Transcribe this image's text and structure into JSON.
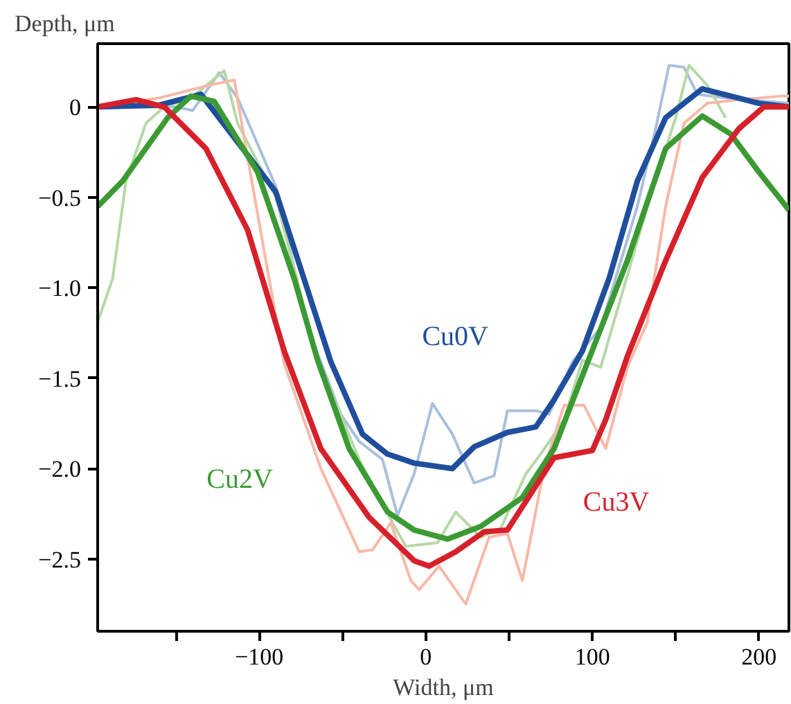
{
  "chart_data": {
    "type": "line",
    "xlabel": "Width, μm",
    "ylabel": "Depth, μm",
    "xlim": [
      -197,
      218
    ],
    "ylim": [
      -2.9,
      0.35
    ],
    "xticks": [
      {
        "value": -150,
        "label": null
      },
      {
        "value": -100,
        "label": "−100"
      },
      {
        "value": -50,
        "label": null
      },
      0,
      {
        "value": 50,
        "label": null
      },
      100,
      {
        "value": 150,
        "label": null
      },
      200
    ],
    "yticks": [
      0,
      {
        "value": -0.5,
        "label": "−0.5"
      },
      {
        "value": -1.0,
        "label": "−1.0"
      },
      {
        "value": -1.5,
        "label": "−1.5"
      },
      {
        "value": -2.0,
        "label": "−2.0"
      },
      {
        "value": -2.5,
        "label": "−2.5"
      }
    ],
    "grid": false,
    "marker": "none",
    "line_style": "solid",
    "series": [
      {
        "name": "Cu0V",
        "color": "#1f4e9c",
        "x": [
          -197,
          -160,
          -135,
          -90,
          -57,
          -38,
          -23,
          -7,
          16,
          29,
          49,
          66,
          77,
          94,
          110,
          127,
          144,
          166,
          183,
          200,
          218
        ],
        "values": [
          0,
          0.01,
          0.07,
          -0.47,
          -1.41,
          -1.81,
          -1.92,
          -1.97,
          -2.0,
          -1.88,
          -1.8,
          -1.77,
          -1.62,
          -1.35,
          -0.95,
          -0.41,
          -0.06,
          0.1,
          0.06,
          0.02,
          0
        ]
      },
      {
        "name": "Cu2V",
        "color": "#3c9a33",
        "x": [
          -197,
          -182,
          -155,
          -141,
          -127,
          -101,
          -79,
          -65,
          -46,
          -23,
          -7,
          13,
          33,
          58,
          77,
          96,
          121,
          144,
          166,
          183,
          200,
          218
        ],
        "values": [
          -0.55,
          -0.41,
          -0.06,
          0.06,
          0.03,
          -0.36,
          -0.95,
          -1.4,
          -1.89,
          -2.24,
          -2.34,
          -2.39,
          -2.32,
          -2.16,
          -1.89,
          -1.44,
          -0.85,
          -0.23,
          -0.05,
          -0.15,
          -0.36,
          -0.57
        ]
      },
      {
        "name": "Cu3V",
        "color": "#d6202a",
        "x": [
          -197,
          -174,
          -157,
          -132,
          -107,
          -85,
          -63,
          -34,
          -7,
          2,
          18,
          35,
          49,
          63,
          77,
          100,
          108,
          121,
          144,
          166,
          188,
          203,
          218
        ],
        "values": [
          0,
          0.04,
          0,
          -0.23,
          -0.68,
          -1.35,
          -1.89,
          -2.27,
          -2.51,
          -2.54,
          -2.46,
          -2.35,
          -2.34,
          -2.14,
          -1.94,
          -1.9,
          -1.73,
          -1.38,
          -0.85,
          -0.39,
          -0.12,
          0,
          0
        ]
      },
      {
        "color": "#a9bfdd",
        "x": [
          -197,
          -150,
          -140,
          -124,
          -113,
          -90,
          -71,
          -51,
          -40,
          -26,
          -17,
          -7,
          4,
          16,
          29,
          41,
          49,
          66,
          74,
          88,
          105,
          127,
          138,
          146,
          155,
          163,
          180,
          218
        ],
        "values": [
          0,
          0,
          -0.02,
          0.19,
          0.05,
          -0.44,
          -1.22,
          -1.7,
          -1.85,
          -1.95,
          -2.26,
          -2.03,
          -1.64,
          -1.81,
          -2.08,
          -2.04,
          -1.68,
          -1.68,
          -1.7,
          -1.41,
          -1.22,
          -0.55,
          -0.12,
          0.23,
          0.22,
          0.07,
          0.05,
          0.02
        ]
      },
      {
        "color": "#b5d9a5",
        "x": [
          -197,
          -188,
          -180,
          -168,
          -157,
          -141,
          -121,
          -113,
          -90,
          -65,
          -40,
          -20,
          -12,
          7,
          18,
          33,
          45,
          60,
          69,
          83,
          94,
          105,
          133,
          150,
          158,
          169,
          180
        ],
        "values": [
          -1.19,
          -0.95,
          -0.41,
          -0.09,
          0,
          0.05,
          0.2,
          -0.09,
          -0.5,
          -1.4,
          -1.95,
          -2.3,
          -2.43,
          -2.41,
          -2.24,
          -2.38,
          -2.33,
          -2.03,
          -1.92,
          -1.73,
          -1.4,
          -1.44,
          -0.55,
          -0.06,
          0.23,
          0.12,
          -0.06
        ]
      },
      {
        "color": "#f9b8a8",
        "x": [
          -197,
          -160,
          -130,
          -115,
          -107,
          -85,
          -63,
          -40,
          -32,
          -21,
          -9,
          -4,
          8,
          24,
          38,
          49,
          58,
          71,
          83,
          95,
          108,
          121,
          133,
          144,
          155,
          169,
          188,
          213,
          218
        ],
        "values": [
          0,
          0.05,
          0.12,
          0.15,
          -0.28,
          -1.42,
          -2.0,
          -2.46,
          -2.45,
          -2.3,
          -2.62,
          -2.67,
          -2.54,
          -2.75,
          -2.38,
          -2.36,
          -2.62,
          -2.0,
          -1.65,
          -1.65,
          -1.89,
          -1.44,
          -1.19,
          -0.55,
          -0.09,
          0.02,
          0.04,
          0.06,
          0.06
        ]
      }
    ]
  }
}
